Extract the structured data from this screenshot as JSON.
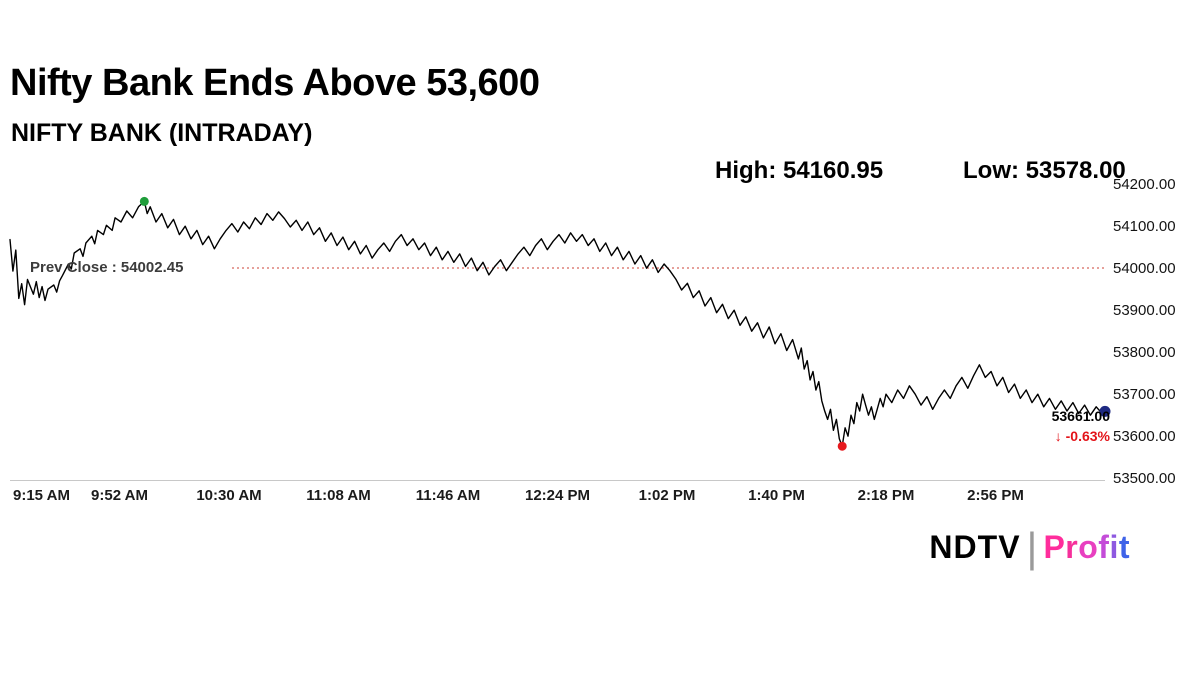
{
  "page": {
    "title": "Nifty Bank Ends Above 53,600",
    "subtitle": "NIFTY BANK (INTRADAY)"
  },
  "stats": {
    "high_label": "High:",
    "high_value": "54160.95",
    "low_label": "Low:",
    "low_value": "53578.00"
  },
  "prev_close": {
    "label": "Prev Close : 54002.45",
    "value": 54002.45
  },
  "last": {
    "price": "53661.00",
    "change": "↓ -0.63%"
  },
  "logo": {
    "ndtv": "NDTV",
    "separator": "|",
    "profit": "Profit",
    "profit_colors": [
      "#ff2d9c",
      "#f6309b",
      "#e840c0",
      "#c44cd8",
      "#8e59e0",
      "#3f63e8"
    ]
  },
  "chart_data": {
    "type": "line",
    "title": "NIFTY BANK (INTRADAY)",
    "xlabel": "",
    "ylabel": "",
    "line_color": "#000000",
    "prev_close_line_color": "#cc4036",
    "prev_close": 54002.45,
    "high": 54160.95,
    "low": 53578.0,
    "last": 53661.0,
    "change_percent": -0.63,
    "x_axis": {
      "labels": [
        "9:15 AM",
        "9:52 AM",
        "10:30 AM",
        "11:08 AM",
        "11:46 AM",
        "12:24 PM",
        "1:02 PM",
        "1:40 PM",
        "2:18 PM",
        "2:56 PM"
      ],
      "start_minute": 0,
      "end_minute": 375,
      "label_interval_minutes": 37.5
    },
    "y_axis": {
      "min": 53500,
      "max": 54200,
      "tick_step": 100,
      "tick_labels": [
        "54200.00",
        "54100.00",
        "54000.00",
        "53900.00",
        "53800.00",
        "53700.00",
        "53600.00",
        "53500.00"
      ]
    },
    "markers": {
      "high": {
        "t": 46,
        "value": 54160.95,
        "color": "#1f9d3a"
      },
      "low": {
        "t": 285,
        "value": 53578.0,
        "color": "#e6191e"
      },
      "last": {
        "t": 375,
        "value": 53661.0,
        "color": "#1f2a82"
      }
    },
    "points": [
      [
        0,
        54070
      ],
      [
        1,
        53995
      ],
      [
        2,
        54045
      ],
      [
        3,
        53930
      ],
      [
        4,
        53965
      ],
      [
        5,
        53915
      ],
      [
        6,
        53975
      ],
      [
        8,
        53940
      ],
      [
        9,
        53970
      ],
      [
        10,
        53932
      ],
      [
        11,
        53958
      ],
      [
        12,
        53925
      ],
      [
        13,
        53952
      ],
      [
        15,
        53962
      ],
      [
        16,
        53945
      ],
      [
        17,
        53972
      ],
      [
        18,
        53985
      ],
      [
        20,
        54012
      ],
      [
        21,
        54000
      ],
      [
        22,
        54038
      ],
      [
        24,
        54048
      ],
      [
        25,
        54030
      ],
      [
        26,
        54062
      ],
      [
        28,
        54078
      ],
      [
        29,
        54060
      ],
      [
        30,
        54092
      ],
      [
        32,
        54082
      ],
      [
        33,
        54104
      ],
      [
        35,
        54092
      ],
      [
        36,
        54122
      ],
      [
        38,
        54112
      ],
      [
        40,
        54138
      ],
      [
        42,
        54122
      ],
      [
        44,
        54148
      ],
      [
        46,
        54160.95
      ],
      [
        47,
        54132
      ],
      [
        48,
        54148
      ],
      [
        50,
        54112
      ],
      [
        52,
        54132
      ],
      [
        54,
        54098
      ],
      [
        56,
        54118
      ],
      [
        58,
        54082
      ],
      [
        60,
        54102
      ],
      [
        62,
        54072
      ],
      [
        64,
        54092
      ],
      [
        66,
        54058
      ],
      [
        68,
        54078
      ],
      [
        70,
        54048
      ],
      [
        72,
        54072
      ],
      [
        74,
        54092
      ],
      [
        76,
        54108
      ],
      [
        78,
        54088
      ],
      [
        80,
        54112
      ],
      [
        82,
        54096
      ],
      [
        84,
        54122
      ],
      [
        86,
        54106
      ],
      [
        88,
        54132
      ],
      [
        90,
        54116
      ],
      [
        92,
        54136
      ],
      [
        94,
        54120
      ],
      [
        96,
        54100
      ],
      [
        98,
        54116
      ],
      [
        100,
        54092
      ],
      [
        102,
        54112
      ],
      [
        104,
        54082
      ],
      [
        106,
        54098
      ],
      [
        108,
        54066
      ],
      [
        110,
        54086
      ],
      [
        112,
        54056
      ],
      [
        114,
        54076
      ],
      [
        116,
        54046
      ],
      [
        118,
        54066
      ],
      [
        120,
        54036
      ],
      [
        122,
        54056
      ],
      [
        124,
        54026
      ],
      [
        126,
        54046
      ],
      [
        128,
        54062
      ],
      [
        130,
        54042
      ],
      [
        132,
        54066
      ],
      [
        134,
        54082
      ],
      [
        136,
        54056
      ],
      [
        138,
        54072
      ],
      [
        140,
        54046
      ],
      [
        142,
        54062
      ],
      [
        144,
        54032
      ],
      [
        146,
        54052
      ],
      [
        148,
        54022
      ],
      [
        150,
        54042
      ],
      [
        152,
        54016
      ],
      [
        154,
        54036
      ],
      [
        156,
        54006
      ],
      [
        158,
        54026
      ],
      [
        160,
        53996
      ],
      [
        162,
        54016
      ],
      [
        164,
        53986
      ],
      [
        166,
        54006
      ],
      [
        168,
        54022
      ],
      [
        170,
        53996
      ],
      [
        172,
        54016
      ],
      [
        174,
        54036
      ],
      [
        176,
        54052
      ],
      [
        178,
        54032
      ],
      [
        180,
        54056
      ],
      [
        182,
        54072
      ],
      [
        184,
        54046
      ],
      [
        186,
        54066
      ],
      [
        188,
        54082
      ],
      [
        190,
        54062
      ],
      [
        192,
        54086
      ],
      [
        194,
        54066
      ],
      [
        196,
        54082
      ],
      [
        198,
        54056
      ],
      [
        200,
        54072
      ],
      [
        202,
        54042
      ],
      [
        204,
        54062
      ],
      [
        206,
        54032
      ],
      [
        208,
        54052
      ],
      [
        210,
        54022
      ],
      [
        212,
        54042
      ],
      [
        214,
        54012
      ],
      [
        216,
        54032
      ],
      [
        218,
        54002
      ],
      [
        220,
        54022
      ],
      [
        222,
        53992
      ],
      [
        224,
        54012
      ],
      [
        226,
        53996
      ],
      [
        228,
        53976
      ],
      [
        230,
        53950
      ],
      [
        232,
        53966
      ],
      [
        234,
        53932
      ],
      [
        236,
        53948
      ],
      [
        238,
        53912
      ],
      [
        240,
        53932
      ],
      [
        242,
        53896
      ],
      [
        244,
        53916
      ],
      [
        246,
        53882
      ],
      [
        248,
        53902
      ],
      [
        250,
        53866
      ],
      [
        252,
        53886
      ],
      [
        254,
        53852
      ],
      [
        256,
        53872
      ],
      [
        258,
        53836
      ],
      [
        260,
        53862
      ],
      [
        262,
        53822
      ],
      [
        264,
        53846
      ],
      [
        266,
        53806
      ],
      [
        268,
        53832
      ],
      [
        270,
        53786
      ],
      [
        271,
        53812
      ],
      [
        272,
        53762
      ],
      [
        273,
        53782
      ],
      [
        274,
        53736
      ],
      [
        275,
        53756
      ],
      [
        276,
        53712
      ],
      [
        277,
        53732
      ],
      [
        278,
        53686
      ],
      [
        279,
        53662
      ],
      [
        280,
        53642
      ],
      [
        281,
        53666
      ],
      [
        282,
        53616
      ],
      [
        283,
        53642
      ],
      [
        284,
        53596
      ],
      [
        285,
        53578
      ],
      [
        286,
        53622
      ],
      [
        287,
        53602
      ],
      [
        288,
        53652
      ],
      [
        289,
        53632
      ],
      [
        290,
        53682
      ],
      [
        291,
        53662
      ],
      [
        292,
        53702
      ],
      [
        293,
        53676
      ],
      [
        294,
        53652
      ],
      [
        295,
        53672
      ],
      [
        296,
        53642
      ],
      [
        297,
        53666
      ],
      [
        298,
        53692
      ],
      [
        299,
        53672
      ],
      [
        300,
        53702
      ],
      [
        302,
        53682
      ],
      [
        304,
        53712
      ],
      [
        306,
        53692
      ],
      [
        308,
        53722
      ],
      [
        310,
        53702
      ],
      [
        312,
        53676
      ],
      [
        314,
        53696
      ],
      [
        316,
        53666
      ],
      [
        318,
        53692
      ],
      [
        320,
        53712
      ],
      [
        322,
        53692
      ],
      [
        324,
        53722
      ],
      [
        326,
        53742
      ],
      [
        328,
        53716
      ],
      [
        330,
        53746
      ],
      [
        332,
        53772
      ],
      [
        334,
        53742
      ],
      [
        336,
        53756
      ],
      [
        338,
        53722
      ],
      [
        340,
        53742
      ],
      [
        342,
        53706
      ],
      [
        344,
        53726
      ],
      [
        346,
        53692
      ],
      [
        348,
        53712
      ],
      [
        350,
        53682
      ],
      [
        352,
        53702
      ],
      [
        354,
        53672
      ],
      [
        356,
        53692
      ],
      [
        358,
        53666
      ],
      [
        360,
        53686
      ],
      [
        362,
        53662
      ],
      [
        364,
        53682
      ],
      [
        366,
        53656
      ],
      [
        368,
        53676
      ],
      [
        370,
        53652
      ],
      [
        372,
        53672
      ],
      [
        374,
        53656
      ],
      [
        375,
        53661
      ]
    ]
  }
}
